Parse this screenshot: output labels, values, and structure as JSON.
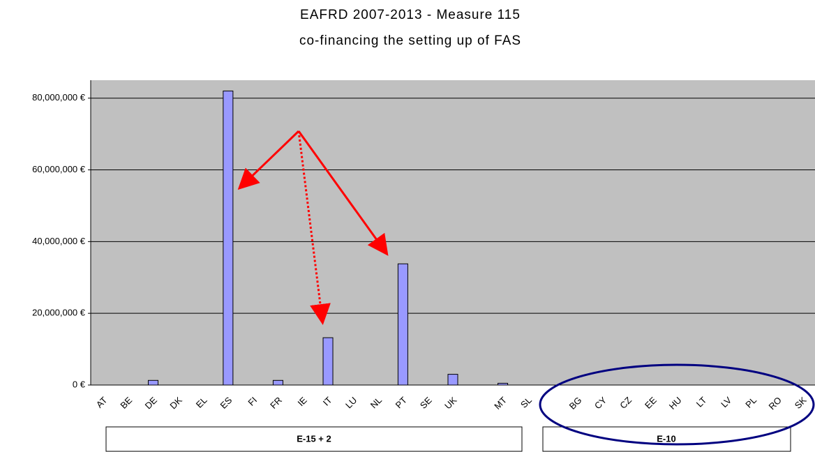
{
  "chart_data": {
    "type": "bar",
    "title": "EAFRD 2007-2013 -  Measure 115",
    "subtitle": "co-financing the setting up of FAS",
    "categories": [
      "AT",
      "BE",
      "DE",
      "DK",
      "EL",
      "ES",
      "FI",
      "FR",
      "IE",
      "IT",
      "LU",
      "NL",
      "PT",
      "SE",
      "UK",
      null,
      "MT",
      "SL",
      null,
      "BG",
      "CY",
      "CZ",
      "EE",
      "HU",
      "LT",
      "LV",
      "PL",
      "RO",
      "SK"
    ],
    "values": [
      0,
      0,
      1300000,
      0,
      0,
      82000000,
      0,
      1300000,
      0,
      13200000,
      0,
      0,
      33800000,
      0,
      3000000,
      null,
      500000,
      0,
      null,
      0,
      0,
      0,
      0,
      0,
      0,
      0,
      0,
      0,
      0
    ],
    "color": "#9999ff",
    "ylim": [
      0,
      85000000
    ],
    "yticks": [
      {
        "value": 0,
        "label": "0 €"
      },
      {
        "value": 20000000,
        "label": "20,000,000 €"
      },
      {
        "value": 40000000,
        "label": "40,000,000 €"
      },
      {
        "value": 60000000,
        "label": "60,000,000 €"
      },
      {
        "value": 80000000,
        "label": "80,000,000 €"
      }
    ],
    "grid": true,
    "group_labels": [
      "E-15 + 2",
      "E-10"
    ]
  }
}
